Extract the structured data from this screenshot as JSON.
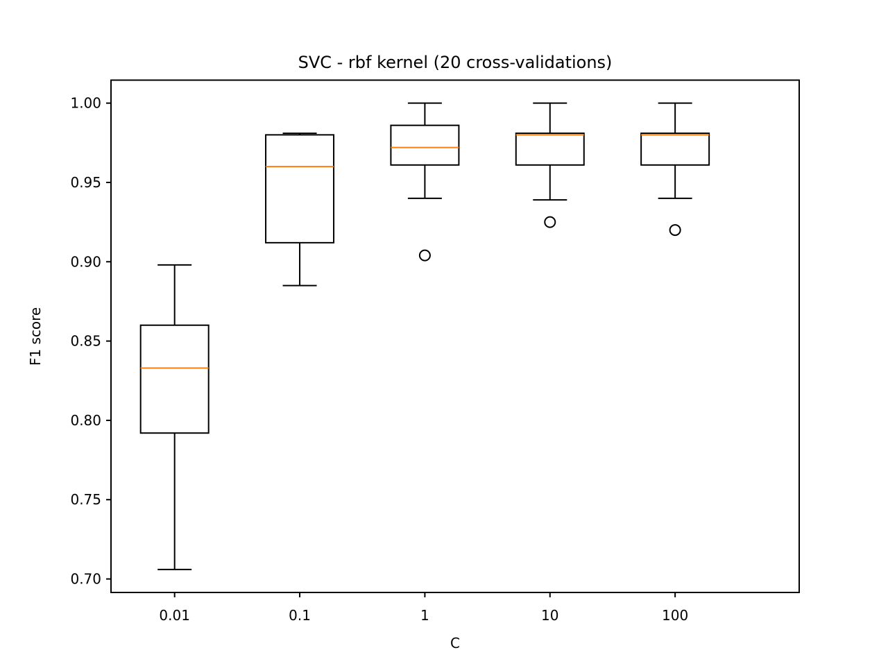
{
  "chart_data": {
    "type": "box",
    "title": "SVC - rbf kernel (20 cross-validations)",
    "xlabel": "C",
    "ylabel": "F1 score",
    "categories": [
      "0.01",
      "0.1",
      "1",
      "10",
      "100"
    ],
    "ylim": [
      0.6915,
      1.0145
    ],
    "yticks": [
      0.7,
      0.75,
      0.8,
      0.85,
      0.9,
      0.95,
      1.0
    ],
    "ytick_labels": [
      "0.70",
      "0.75",
      "0.80",
      "0.85",
      "0.90",
      "0.95",
      "1.00"
    ],
    "grid": false,
    "boxes": [
      {
        "category": "0.01",
        "whisker_low": 0.706,
        "q1": 0.792,
        "median": 0.833,
        "q3": 0.86,
        "whisker_high": 0.898,
        "outliers": []
      },
      {
        "category": "0.1",
        "whisker_low": 0.885,
        "q1": 0.912,
        "median": 0.96,
        "q3": 0.98,
        "whisker_high": 0.981,
        "outliers": []
      },
      {
        "category": "1",
        "whisker_low": 0.94,
        "q1": 0.961,
        "median": 0.972,
        "q3": 0.986,
        "whisker_high": 1.0,
        "outliers": [
          0.904
        ]
      },
      {
        "category": "10",
        "whisker_low": 0.939,
        "q1": 0.961,
        "median": 0.98,
        "q3": 0.981,
        "whisker_high": 1.0,
        "outliers": [
          0.925
        ]
      },
      {
        "category": "100",
        "whisker_low": 0.94,
        "q1": 0.961,
        "median": 0.98,
        "q3": 0.981,
        "whisker_high": 1.0,
        "outliers": [
          0.92
        ]
      }
    ],
    "colors": {
      "box": "#000000",
      "median": "#ff7f0e",
      "outlier": "#000000"
    }
  }
}
